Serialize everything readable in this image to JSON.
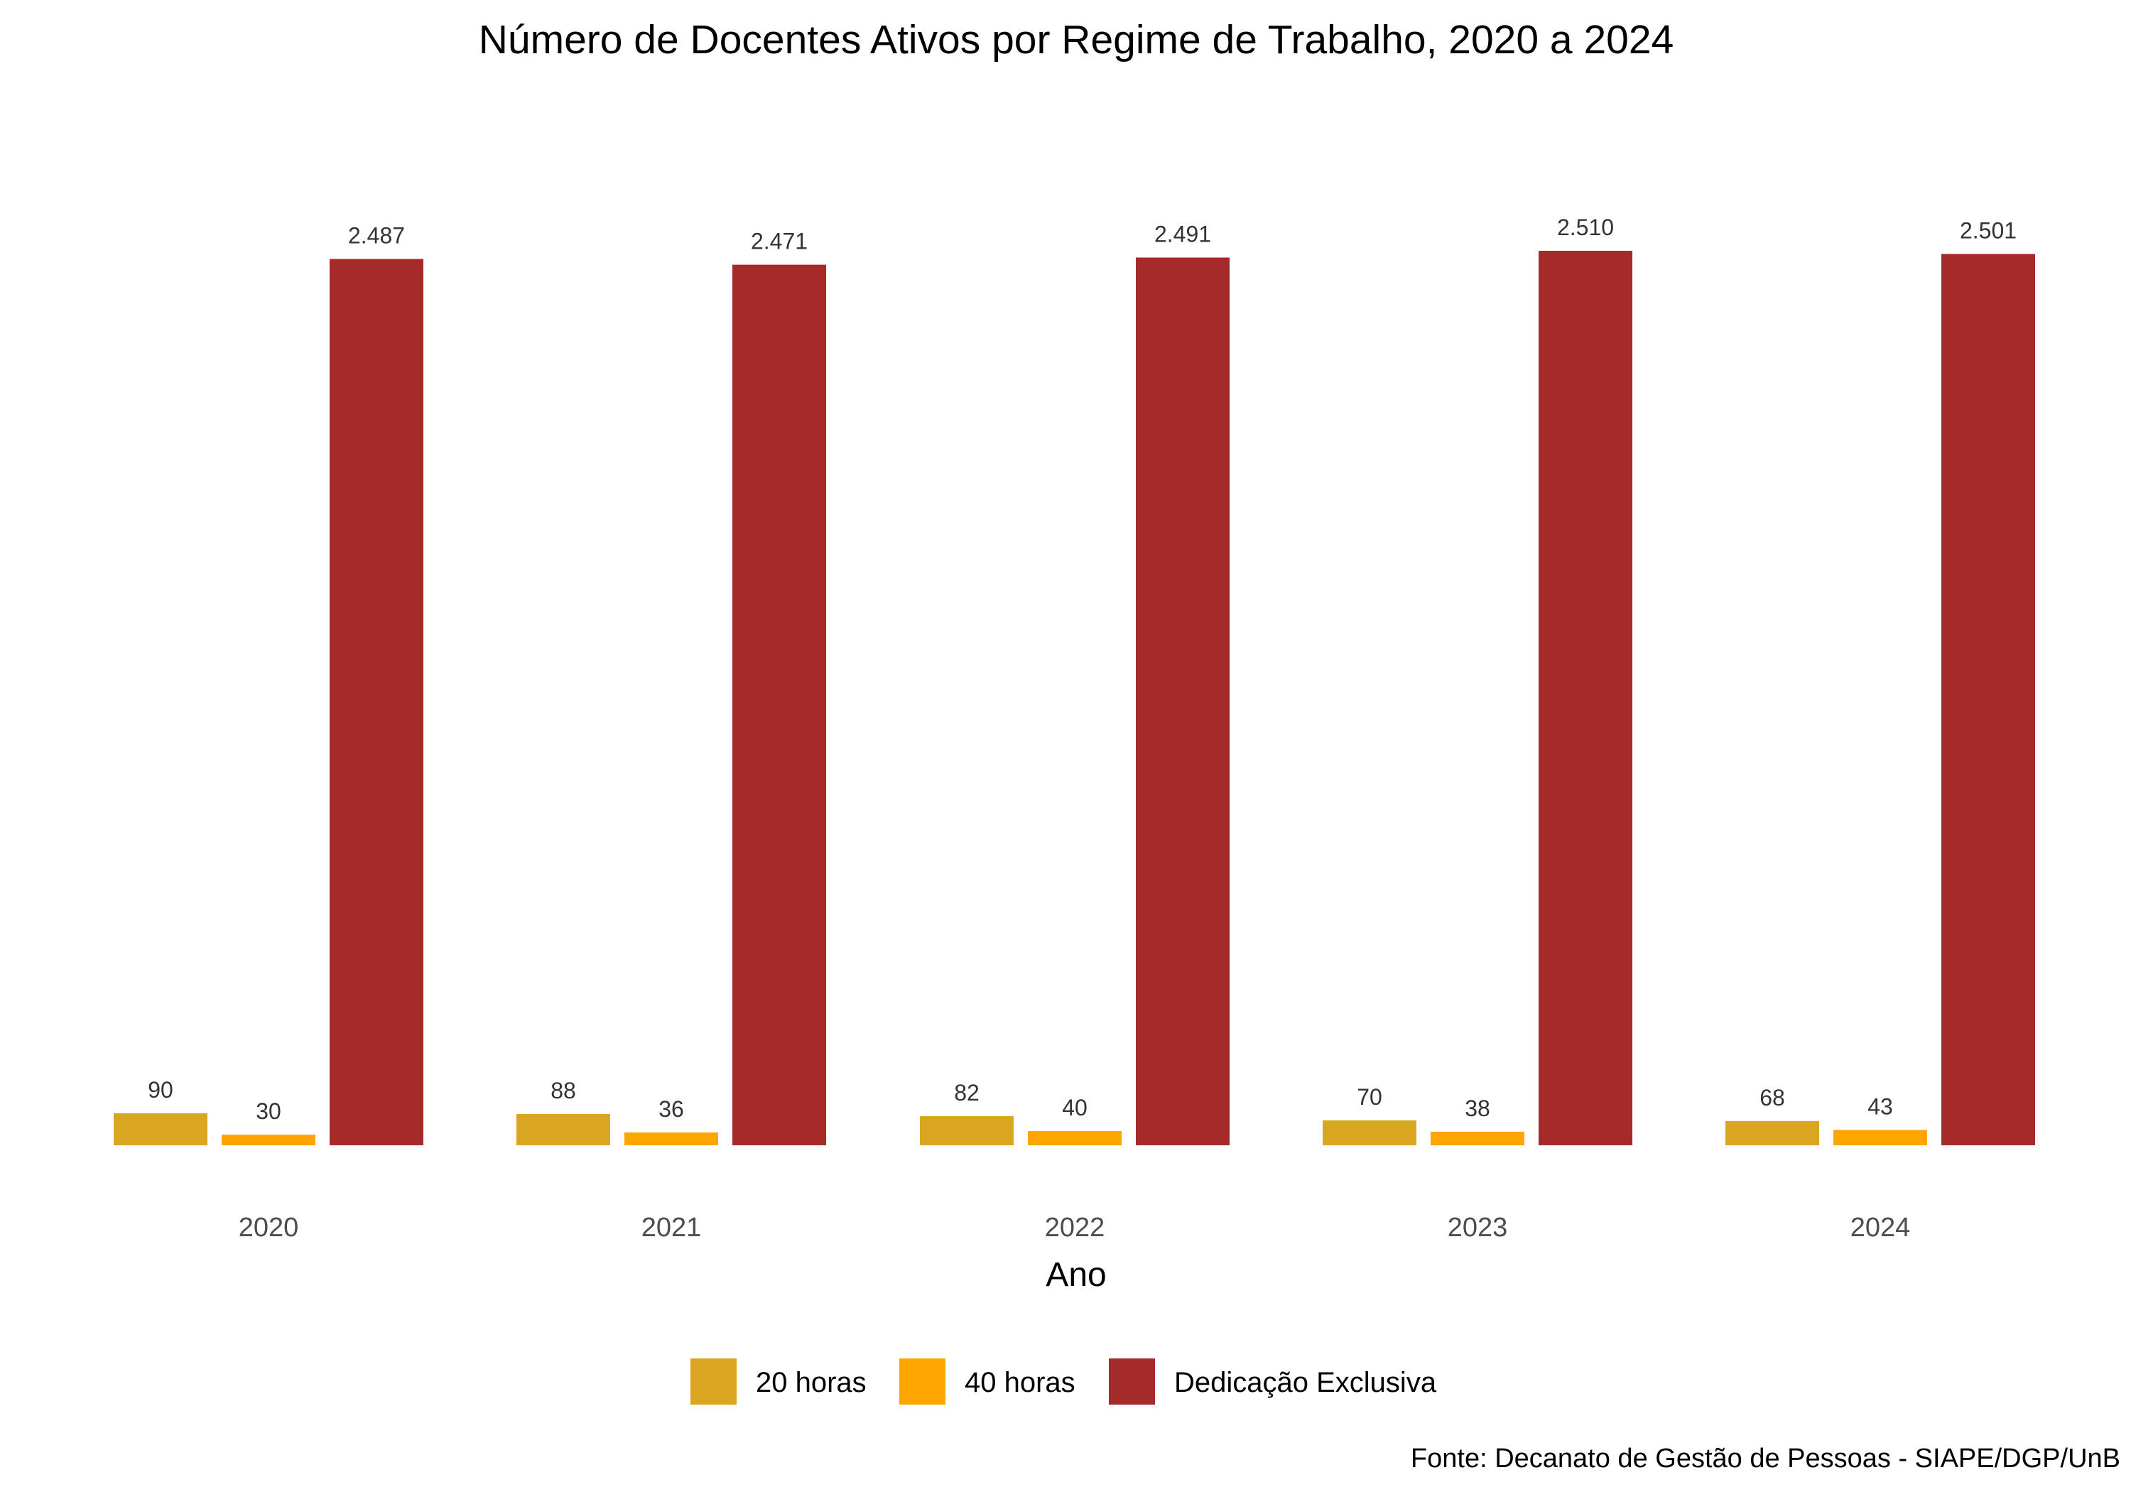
{
  "chart_data": {
    "type": "bar",
    "title": "Número de Docentes Ativos por Regime de Trabalho, 2020 a 2024",
    "xlabel": "Ano",
    "ylabel": "",
    "categories": [
      "2020",
      "2021",
      "2022",
      "2023",
      "2024"
    ],
    "series": [
      {
        "name": "20 horas",
        "color": "#DAA520",
        "values": [
          90,
          88,
          82,
          70,
          68
        ],
        "labels": [
          "90",
          "88",
          "82",
          "70",
          "68"
        ]
      },
      {
        "name": "40 horas",
        "color": "#FFA500",
        "values": [
          30,
          36,
          40,
          38,
          43
        ],
        "labels": [
          "30",
          "36",
          "40",
          "38",
          "43"
        ]
      },
      {
        "name": "Dedicação Exclusiva",
        "color": "#A52A2A",
        "values": [
          2487,
          2471,
          2491,
          2510,
          2501
        ],
        "labels": [
          "2.487",
          "2.471",
          "2.491",
          "2.510",
          "2.501"
        ]
      }
    ],
    "ylim": [
      0,
      2510
    ],
    "grid": false,
    "y_axis_visible": false,
    "legend_position": "bottom",
    "caption": "Fonte: Decanato de Gestão de Pessoas - SIAPE/DGP/UnB"
  }
}
